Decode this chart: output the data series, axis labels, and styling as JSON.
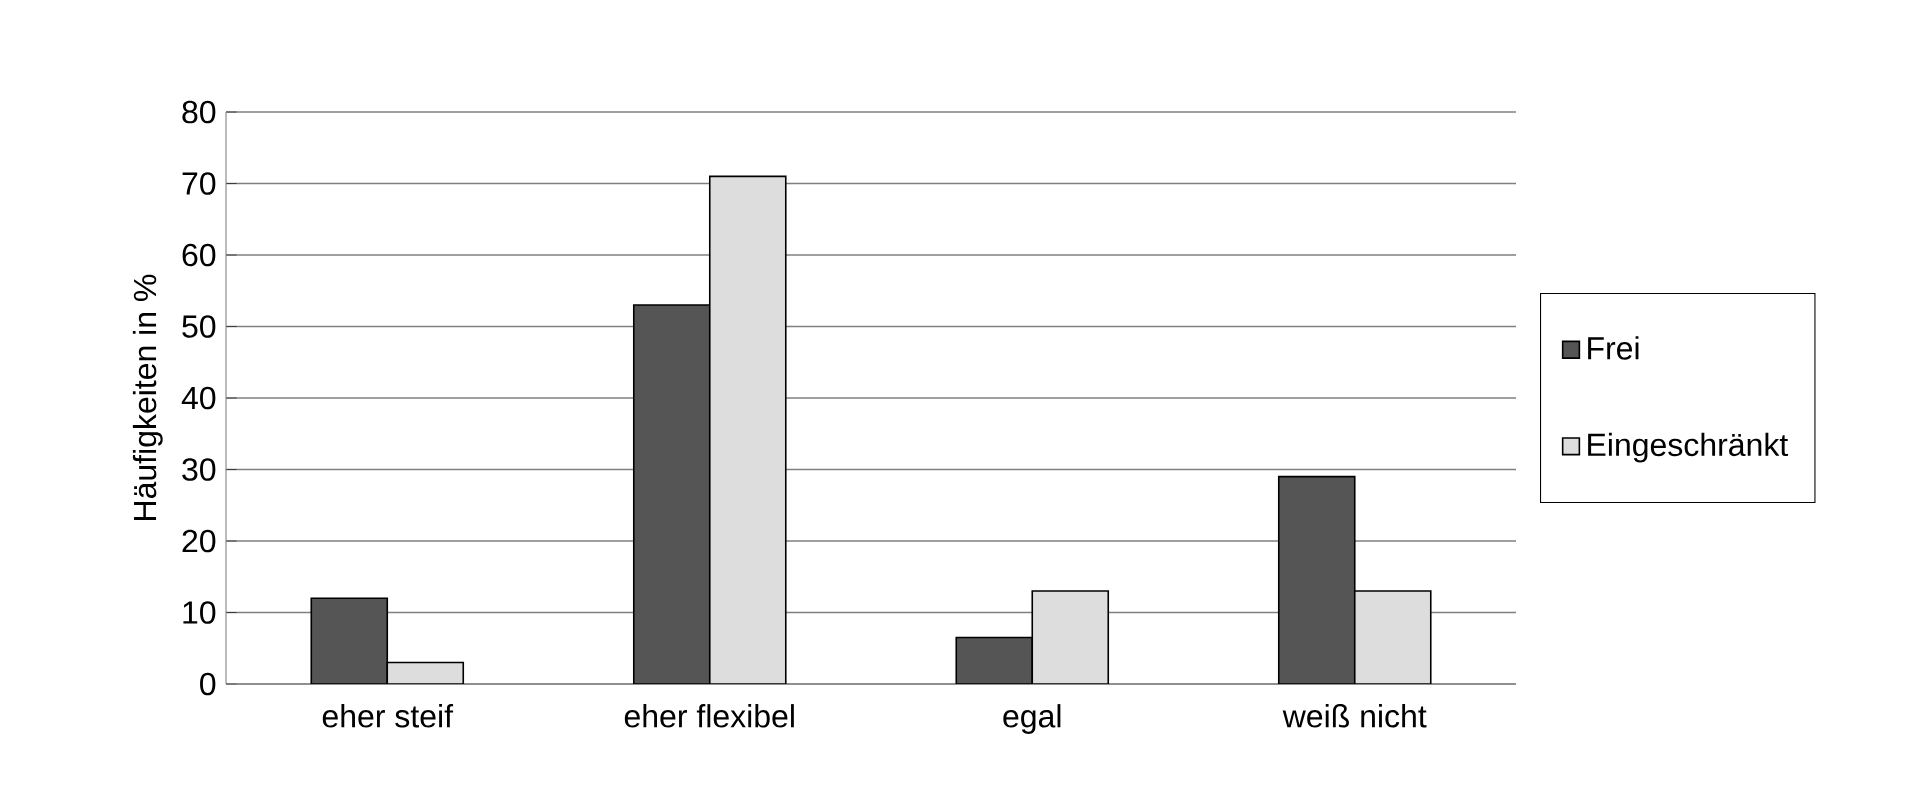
{
  "chart_data": {
    "type": "bar",
    "ylabel": "Häufigkeiten in %",
    "categories": [
      "eher steif",
      "eher flexibel",
      "egal",
      "weiß nicht"
    ],
    "series": [
      {
        "name": "Frei",
        "color": "#555555",
        "values": [
          12,
          53,
          6.5,
          29
        ]
      },
      {
        "name": "Eingeschränkt",
        "color": "#dddddd",
        "values": [
          3,
          71,
          13,
          13
        ]
      }
    ],
    "ylim": [
      0,
      80
    ],
    "yticks": [
      0,
      10,
      20,
      30,
      40,
      50,
      60,
      70,
      80
    ],
    "grid": "y",
    "legend": "right"
  }
}
